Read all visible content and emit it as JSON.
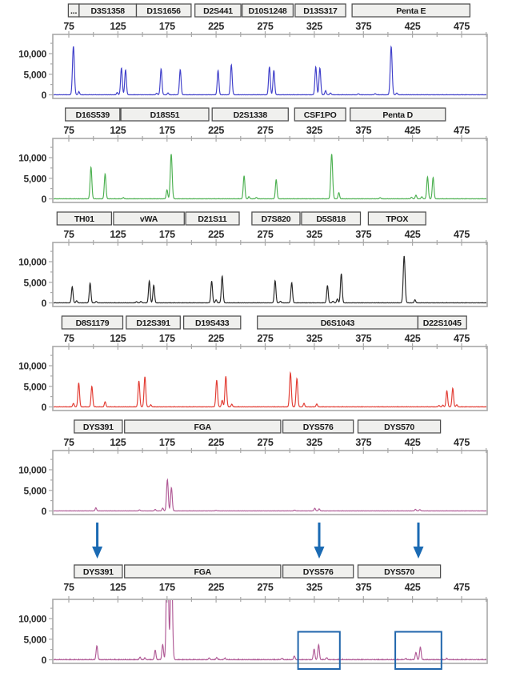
{
  "figure": {
    "kind": "STR capillary electrophoresis electropherogram, six dye-channel panels",
    "background": "#ffffff"
  },
  "colors": {
    "panel_border": "#a8a8a8",
    "tick": "#a8a8a8",
    "label_box_fill": "#f0f0ee",
    "label_box_border": "#4d4d4d",
    "text": "#1a1a1a",
    "arrow": "#1a6ab3",
    "highlight_box": "#2166ac",
    "traces": {
      "blue": "#3f3fca",
      "green": "#4cb050",
      "black": "#262626",
      "red": "#e23b32",
      "magenta": "#b05a96"
    }
  },
  "axis": {
    "x_ticks": [
      75,
      125,
      175,
      225,
      275,
      325,
      375,
      425,
      475
    ],
    "x_minor_step": 25,
    "x_range_bp": [
      58.5,
      500.5
    ],
    "y_tick_labels": [
      "10,000",
      "5,000",
      "0"
    ],
    "y_tick_values": [
      10000,
      5000,
      0
    ],
    "y_minor_values": [
      12500,
      7500,
      2500
    ],
    "y_max_rfu": 14660
  },
  "arrows": {
    "bp": [
      104,
      330,
      431
    ]
  },
  "chart_data": [
    {
      "type": "line",
      "name": "autosomal-markers-blue-dye",
      "color_key": "blue",
      "noise_rfu": 90,
      "markers": [
        {
          "label": "...",
          "start": 74.5,
          "end": 85.5
        },
        {
          "label": "D3S1358",
          "start": 85.5,
          "end": 143.8
        },
        {
          "label": "D1S1656",
          "start": 143.8,
          "end": 199.5
        },
        {
          "label": "D2S441",
          "start": 203.5,
          "end": 250.3
        },
        {
          "label": "D10S1248",
          "start": 251.5,
          "end": 303.4
        },
        {
          "label": "D13S317",
          "start": 305.5,
          "end": 357
        },
        {
          "label": "Penta E",
          "start": 363.5,
          "end": 483.5
        }
      ],
      "peaks": [
        [
          79.7,
          11800
        ],
        [
          85.3,
          750
        ],
        [
          124.3,
          550
        ],
        [
          128.6,
          6500
        ],
        [
          132.8,
          6050
        ],
        [
          164.5,
          400
        ],
        [
          169,
          6300
        ],
        [
          176,
          450
        ],
        [
          188.5,
          6100
        ],
        [
          227,
          5900
        ],
        [
          240.5,
          7300
        ],
        [
          279.3,
          6800
        ],
        [
          283.8,
          5950
        ],
        [
          326.5,
          6800
        ],
        [
          330.7,
          6500
        ],
        [
          336.5,
          1000
        ],
        [
          341.5,
          450
        ],
        [
          370,
          250
        ],
        [
          387,
          300
        ],
        [
          403.3,
          11700
        ],
        [
          409,
          450
        ]
      ]
    },
    {
      "type": "line",
      "name": "autosomal-markers-green-dye",
      "color_key": "green",
      "noise_rfu": 90,
      "markers": [
        {
          "label": "D16S539",
          "start": 71.5,
          "end": 127
        },
        {
          "label": "D18S51",
          "start": 128,
          "end": 217.5
        },
        {
          "label": "D2S1338",
          "start": 221,
          "end": 298.5
        },
        {
          "label": "CSF1PO",
          "start": 305,
          "end": 357
        },
        {
          "label": "Penta D",
          "start": 361.5,
          "end": 458.5
        }
      ],
      "peaks": [
        [
          97.6,
          7700
        ],
        [
          112,
          6050
        ],
        [
          130.5,
          300
        ],
        [
          175,
          2200
        ],
        [
          179.3,
          10900
        ],
        [
          253.5,
          5600
        ],
        [
          258.5,
          500
        ],
        [
          266,
          350
        ],
        [
          286.2,
          4700
        ],
        [
          342.7,
          10900
        ],
        [
          350,
          1500
        ],
        [
          392,
          300
        ],
        [
          424,
          400
        ],
        [
          428.5,
          900
        ],
        [
          434.5,
          500
        ],
        [
          440.3,
          5300
        ],
        [
          446,
          5200
        ]
      ]
    },
    {
      "type": "line",
      "name": "autosomal-markers-black-dye",
      "color_key": "black",
      "noise_rfu": 90,
      "markers": [
        {
          "label": "TH01",
          "start": 63,
          "end": 118.5
        },
        {
          "label": "vWA",
          "start": 120.5,
          "end": 192.5
        },
        {
          "label": "D21S11",
          "start": 194,
          "end": 248.5
        },
        {
          "label": "D7S820",
          "start": 261.5,
          "end": 310.5
        },
        {
          "label": "D5S818",
          "start": 312,
          "end": 372
        },
        {
          "label": "TPOX",
          "start": 380,
          "end": 438.5
        }
      ],
      "peaks": [
        [
          78.5,
          3950
        ],
        [
          83,
          500
        ],
        [
          96.7,
          4800
        ],
        [
          103,
          350
        ],
        [
          144,
          300
        ],
        [
          148.5,
          350
        ],
        [
          157,
          5300
        ],
        [
          161.5,
          4300
        ],
        [
          220.5,
          5300
        ],
        [
          225,
          750
        ],
        [
          231.2,
          6500
        ],
        [
          285.1,
          5400
        ],
        [
          290.5,
          400
        ],
        [
          302,
          4900
        ],
        [
          338.4,
          4200
        ],
        [
          344,
          400
        ],
        [
          348.5,
          950
        ],
        [
          352.5,
          7100
        ],
        [
          416.5,
          11400
        ],
        [
          427.5,
          750
        ]
      ]
    },
    {
      "type": "line",
      "name": "autosomal-markers-red-dye",
      "color_key": "red",
      "noise_rfu": 100,
      "markers": [
        {
          "label": "D8S1179",
          "start": 68,
          "end": 130
        },
        {
          "label": "D12S391",
          "start": 133.5,
          "end": 188.5
        },
        {
          "label": "D19S433",
          "start": 192,
          "end": 250
        },
        {
          "label": "D6S1043",
          "start": 267,
          "end": 430.5
        },
        {
          "label": "D22S1045",
          "start": 430.5,
          "end": 480
        }
      ],
      "peaks": [
        [
          79.7,
          850
        ],
        [
          85.1,
          5800
        ],
        [
          98.5,
          5000
        ],
        [
          112,
          1250
        ],
        [
          146.4,
          6300
        ],
        [
          152.5,
          7300
        ],
        [
          158.5,
          500
        ],
        [
          225.6,
          6500
        ],
        [
          231.2,
          1600
        ],
        [
          234.9,
          7400
        ],
        [
          241,
          650
        ],
        [
          300.7,
          8300
        ],
        [
          307.3,
          6900
        ],
        [
          314.5,
          850
        ],
        [
          327.5,
          700
        ],
        [
          452,
          350
        ],
        [
          456,
          400
        ],
        [
          460,
          3900
        ],
        [
          466,
          4500
        ],
        [
          470,
          500
        ]
      ]
    },
    {
      "type": "line",
      "name": "y-str-markers-magenta-dye",
      "color_key": "magenta",
      "noise_rfu": 70,
      "markers": [
        {
          "label": "DYS391",
          "start": 80.5,
          "end": 129.5
        },
        {
          "label": "FGA",
          "start": 131.8,
          "end": 290.8
        },
        {
          "label": "DYS576",
          "start": 293,
          "end": 364.8
        },
        {
          "label": "DYS570",
          "start": 369.5,
          "end": 453.5
        }
      ],
      "peaks": [
        [
          102.6,
          750
        ],
        [
          147,
          250
        ],
        [
          163,
          350
        ],
        [
          170.6,
          700
        ],
        [
          175.4,
          7600
        ],
        [
          179.5,
          5650
        ],
        [
          225,
          150
        ],
        [
          305,
          200
        ],
        [
          325.5,
          650
        ],
        [
          330,
          480
        ],
        [
          428,
          400
        ],
        [
          432.5,
          330
        ]
      ]
    },
    {
      "type": "line",
      "name": "y-str-markers-magenta-dye-amplified",
      "color_key": "magenta",
      "noise_rfu": 200,
      "markers": [
        {
          "label": "DYS391",
          "start": 80.5,
          "end": 129.5
        },
        {
          "label": "FGA",
          "start": 131.8,
          "end": 290.8
        },
        {
          "label": "DYS576",
          "start": 293,
          "end": 364.8
        },
        {
          "label": "DYS570",
          "start": 369.5,
          "end": 453.5
        }
      ],
      "peaks": [
        [
          103.6,
          3400
        ],
        [
          147.5,
          600
        ],
        [
          152.5,
          400
        ],
        [
          163,
          2300
        ],
        [
          170.6,
          3700
        ],
        [
          175.4,
          34000
        ],
        [
          179.5,
          26000
        ],
        [
          218,
          400
        ],
        [
          225.6,
          550
        ],
        [
          234,
          400
        ],
        [
          292,
          350
        ],
        [
          304.7,
          900
        ],
        [
          324.8,
          2600
        ],
        [
          329.4,
          3600
        ],
        [
          337.5,
          500
        ],
        [
          418,
          300
        ],
        [
          428.5,
          1800
        ],
        [
          433,
          3100
        ],
        [
          460,
          250
        ]
      ],
      "highlight_boxes": [
        {
          "start": 308.5,
          "end": 351,
          "top_rfu": 6800
        },
        {
          "start": 407.5,
          "end": 454.5,
          "top_rfu": 6800
        }
      ]
    }
  ]
}
